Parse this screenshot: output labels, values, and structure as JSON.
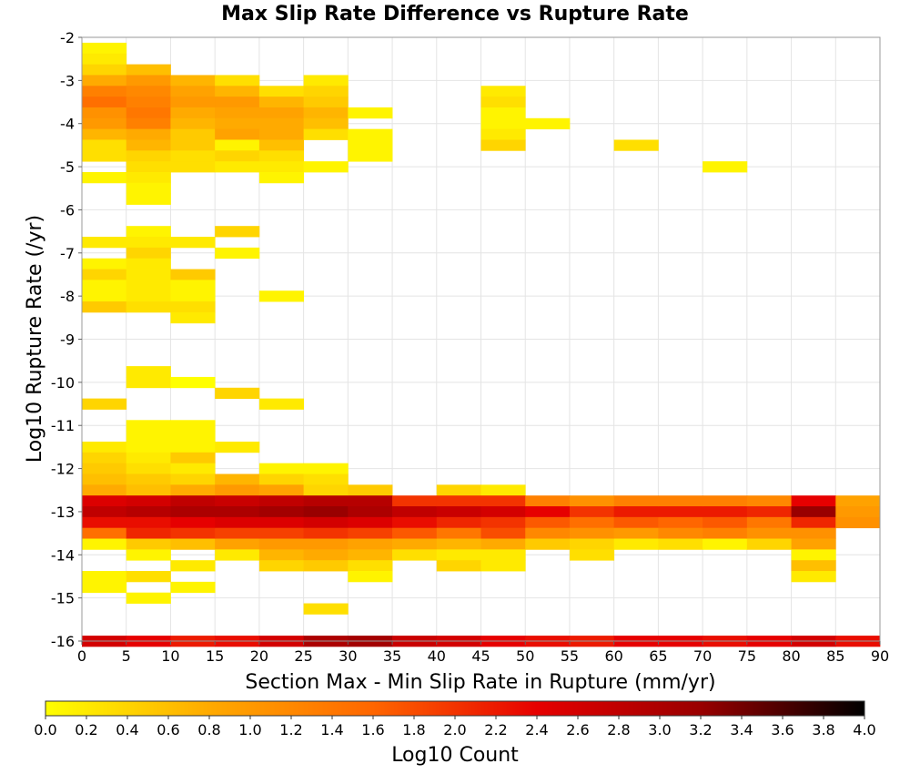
{
  "chart_data": {
    "type": "heatmap",
    "title": "Max Slip Rate Difference vs Rupture Rate",
    "xlabel": "Section Max - Min Slip Rate in Rupture (mm/yr)",
    "ylabel": "Log10 Rupture Rate (/yr)",
    "xlim": [
      0,
      90
    ],
    "ylim": [
      -16,
      -2
    ],
    "x_ticks": [
      "0",
      "5",
      "10",
      "15",
      "20",
      "25",
      "30",
      "35",
      "40",
      "45",
      "50",
      "55",
      "60",
      "65",
      "70",
      "75",
      "80",
      "85",
      "90"
    ],
    "y_ticks": [
      "-2",
      "-3",
      "-4",
      "-5",
      "-6",
      "-7",
      "-8",
      "-9",
      "-10",
      "-11",
      "-12",
      "-13",
      "-14",
      "-15",
      "-16"
    ],
    "x_bin_width": 5,
    "y_bin_height": 0.25,
    "grid": true,
    "colorbar": {
      "label": "Log10 Count",
      "min": 0.0,
      "max": 4.0,
      "ticks": [
        "0.0",
        "0.2",
        "0.4",
        "0.6",
        "0.8",
        "1.0",
        "1.2",
        "1.4",
        "1.6",
        "1.8",
        "2.0",
        "2.2",
        "2.4",
        "2.6",
        "2.8",
        "3.0",
        "3.2",
        "3.4",
        "3.6",
        "3.8",
        "4.0"
      ],
      "colors": [
        "#ffff00",
        "#ffaa00",
        "#ff6600",
        "#e60000",
        "#990000",
        "#000000"
      ]
    },
    "cells": [
      [
        0,
        -2.25,
        0.1
      ],
      [
        0,
        -2.5,
        0.2
      ],
      [
        0,
        -2.75,
        0.4
      ],
      [
        0,
        -3.0,
        0.8
      ],
      [
        0,
        -3.25,
        1.3
      ],
      [
        0,
        -3.5,
        1.5
      ],
      [
        0,
        -3.75,
        1.1
      ],
      [
        0,
        -4.0,
        1.0
      ],
      [
        0,
        -4.25,
        0.7
      ],
      [
        0,
        -4.5,
        0.3
      ],
      [
        0,
        -4.75,
        0.3
      ],
      [
        0,
        -5.25,
        0.1
      ],
      [
        0,
        -6.75,
        0.2
      ],
      [
        0,
        -7.25,
        0.1
      ],
      [
        0,
        -7.5,
        0.4
      ],
      [
        0,
        -7.75,
        0.1
      ],
      [
        0,
        -8.0,
        0.1
      ],
      [
        0,
        -8.25,
        0.5
      ],
      [
        0,
        -10.5,
        0.4
      ],
      [
        0,
        -11.5,
        0.2
      ],
      [
        0,
        -11.75,
        0.4
      ],
      [
        0,
        -12.0,
        0.5
      ],
      [
        0,
        -12.25,
        0.6
      ],
      [
        0,
        -12.5,
        0.8
      ],
      [
        0,
        -12.75,
        2.5
      ],
      [
        0,
        -13.0,
        2.8
      ],
      [
        0,
        -13.25,
        2.3
      ],
      [
        0,
        -13.5,
        1.5
      ],
      [
        0,
        -13.75,
        0.1
      ],
      [
        0,
        -14.5,
        0.1
      ],
      [
        0,
        -14.75,
        0.1
      ],
      [
        5,
        -2.75,
        0.6
      ],
      [
        5,
        -3.0,
        1.0
      ],
      [
        5,
        -3.25,
        1.2
      ],
      [
        5,
        -3.5,
        1.3
      ],
      [
        5,
        -3.75,
        1.4
      ],
      [
        5,
        -4.0,
        1.3
      ],
      [
        5,
        -4.25,
        0.8
      ],
      [
        5,
        -4.5,
        0.7
      ],
      [
        5,
        -4.75,
        0.4
      ],
      [
        5,
        -5.0,
        0.3
      ],
      [
        5,
        -5.25,
        0.2
      ],
      [
        5,
        -5.5,
        0.1
      ],
      [
        5,
        -5.75,
        0.1
      ],
      [
        5,
        -6.5,
        0.1
      ],
      [
        5,
        -6.75,
        0.2
      ],
      [
        5,
        -7.0,
        0.4
      ],
      [
        5,
        -7.25,
        0.2
      ],
      [
        5,
        -7.5,
        0.2
      ],
      [
        5,
        -7.75,
        0.2
      ],
      [
        5,
        -8.0,
        0.2
      ],
      [
        5,
        -8.25,
        0.3
      ],
      [
        5,
        -9.75,
        0.2
      ],
      [
        5,
        -10.0,
        0.2
      ],
      [
        5,
        -11.0,
        0.1
      ],
      [
        5,
        -11.25,
        0.1
      ],
      [
        5,
        -11.5,
        0.1
      ],
      [
        5,
        -11.75,
        0.2
      ],
      [
        5,
        -12.0,
        0.3
      ],
      [
        5,
        -12.25,
        0.5
      ],
      [
        5,
        -12.5,
        0.6
      ],
      [
        5,
        -12.75,
        2.6
      ],
      [
        5,
        -13.0,
        2.9
      ],
      [
        5,
        -13.25,
        2.3
      ],
      [
        5,
        -13.5,
        2.1
      ],
      [
        5,
        -13.75,
        0.5
      ],
      [
        5,
        -14.0,
        0.1
      ],
      [
        5,
        -14.5,
        0.3
      ],
      [
        5,
        -15.0,
        0.1
      ],
      [
        10,
        -3.0,
        0.7
      ],
      [
        10,
        -3.25,
        0.9
      ],
      [
        10,
        -3.5,
        1.0
      ],
      [
        10,
        -3.75,
        0.8
      ],
      [
        10,
        -4.0,
        0.7
      ],
      [
        10,
        -4.25,
        0.5
      ],
      [
        10,
        -4.5,
        0.5
      ],
      [
        10,
        -4.75,
        0.3
      ],
      [
        10,
        -5.0,
        0.3
      ],
      [
        10,
        -6.75,
        0.2
      ],
      [
        10,
        -7.5,
        0.5
      ],
      [
        10,
        -7.75,
        0.1
      ],
      [
        10,
        -8.0,
        0.1
      ],
      [
        10,
        -8.25,
        0.3
      ],
      [
        10,
        -8.5,
        0.2
      ],
      [
        10,
        -10.0,
        0.0
      ],
      [
        10,
        -11.0,
        0.1
      ],
      [
        10,
        -11.25,
        0.1
      ],
      [
        10,
        -11.5,
        0.1
      ],
      [
        10,
        -11.75,
        0.5
      ],
      [
        10,
        -12.0,
        0.2
      ],
      [
        10,
        -12.25,
        0.4
      ],
      [
        10,
        -12.5,
        0.8
      ],
      [
        10,
        -12.75,
        2.8
      ],
      [
        10,
        -13.0,
        3.0
      ],
      [
        10,
        -13.25,
        2.4
      ],
      [
        10,
        -13.5,
        2.0
      ],
      [
        10,
        -13.75,
        0.6
      ],
      [
        10,
        -14.25,
        0.2
      ],
      [
        10,
        -14.75,
        0.1
      ],
      [
        15,
        -3.0,
        0.3
      ],
      [
        15,
        -3.25,
        0.7
      ],
      [
        15,
        -3.5,
        1.0
      ],
      [
        15,
        -3.75,
        0.9
      ],
      [
        15,
        -4.0,
        0.8
      ],
      [
        15,
        -4.25,
        0.9
      ],
      [
        15,
        -4.5,
        0.1
      ],
      [
        15,
        -4.75,
        0.4
      ],
      [
        15,
        -5.0,
        0.2
      ],
      [
        15,
        -6.5,
        0.4
      ],
      [
        15,
        -7.0,
        0.1
      ],
      [
        15,
        -10.25,
        0.4
      ],
      [
        15,
        -11.5,
        0.2
      ],
      [
        15,
        -12.25,
        0.7
      ],
      [
        15,
        -12.5,
        1.0
      ],
      [
        15,
        -12.75,
        2.7
      ],
      [
        15,
        -13.0,
        3.0
      ],
      [
        15,
        -13.25,
        2.5
      ],
      [
        15,
        -13.5,
        1.9
      ],
      [
        15,
        -13.75,
        0.9
      ],
      [
        15,
        -14.0,
        0.2
      ],
      [
        20,
        -3.25,
        0.3
      ],
      [
        20,
        -3.5,
        0.7
      ],
      [
        20,
        -3.75,
        0.9
      ],
      [
        20,
        -4.0,
        0.8
      ],
      [
        20,
        -4.25,
        0.8
      ],
      [
        20,
        -4.5,
        0.6
      ],
      [
        20,
        -4.75,
        0.3
      ],
      [
        20,
        -5.0,
        0.2
      ],
      [
        20,
        -5.25,
        0.1
      ],
      [
        20,
        -8.0,
        0.1
      ],
      [
        20,
        -10.5,
        0.2
      ],
      [
        20,
        -12.0,
        0.1
      ],
      [
        20,
        -12.25,
        0.4
      ],
      [
        20,
        -12.5,
        0.9
      ],
      [
        20,
        -12.75,
        2.8
      ],
      [
        20,
        -13.0,
        3.1
      ],
      [
        20,
        -13.25,
        2.5
      ],
      [
        20,
        -13.5,
        1.9
      ],
      [
        20,
        -13.75,
        1.0
      ],
      [
        20,
        -14.0,
        0.7
      ],
      [
        20,
        -14.25,
        0.4
      ],
      [
        25,
        -3.0,
        0.2
      ],
      [
        25,
        -3.25,
        0.4
      ],
      [
        25,
        -3.5,
        0.5
      ],
      [
        25,
        -3.75,
        0.7
      ],
      [
        25,
        -4.0,
        0.6
      ],
      [
        25,
        -4.25,
        0.3
      ],
      [
        25,
        -5.0,
        0.1
      ],
      [
        25,
        -12.0,
        0.1
      ],
      [
        25,
        -12.25,
        0.3
      ],
      [
        25,
        -12.5,
        0.4
      ],
      [
        25,
        -12.75,
        2.9
      ],
      [
        25,
        -13.0,
        3.2
      ],
      [
        25,
        -13.25,
        2.6
      ],
      [
        25,
        -13.5,
        2.0
      ],
      [
        25,
        -13.75,
        1.0
      ],
      [
        25,
        -14.0,
        0.8
      ],
      [
        25,
        -14.25,
        0.5
      ],
      [
        25,
        -15.25,
        0.3
      ],
      [
        30,
        -3.75,
        0.1
      ],
      [
        30,
        -4.25,
        0.1
      ],
      [
        30,
        -4.5,
        0.1
      ],
      [
        30,
        -4.75,
        0.1
      ],
      [
        30,
        -12.5,
        0.5
      ],
      [
        30,
        -12.75,
        2.9
      ],
      [
        30,
        -13.0,
        3.0
      ],
      [
        30,
        -13.25,
        2.5
      ],
      [
        30,
        -13.5,
        1.9
      ],
      [
        30,
        -13.75,
        0.9
      ],
      [
        30,
        -14.0,
        0.7
      ],
      [
        30,
        -14.25,
        0.3
      ],
      [
        30,
        -14.5,
        0.1
      ],
      [
        35,
        -12.75,
        2.0
      ],
      [
        35,
        -13.0,
        2.8
      ],
      [
        35,
        -13.25,
        2.3
      ],
      [
        35,
        -13.5,
        1.7
      ],
      [
        35,
        -13.75,
        0.8
      ],
      [
        35,
        -14.0,
        0.3
      ],
      [
        40,
        -12.5,
        0.4
      ],
      [
        40,
        -12.75,
        2.0
      ],
      [
        40,
        -13.0,
        2.7
      ],
      [
        40,
        -13.25,
        2.1
      ],
      [
        40,
        -13.5,
        1.4
      ],
      [
        40,
        -13.75,
        0.7
      ],
      [
        40,
        -14.0,
        0.2
      ],
      [
        40,
        -14.25,
        0.4
      ],
      [
        45,
        -3.25,
        0.2
      ],
      [
        45,
        -3.5,
        0.3
      ],
      [
        45,
        -3.75,
        0.1
      ],
      [
        45,
        -4.0,
        0.1
      ],
      [
        45,
        -4.25,
        0.2
      ],
      [
        45,
        -4.5,
        0.4
      ],
      [
        45,
        -12.5,
        0.2
      ],
      [
        45,
        -12.75,
        2.0
      ],
      [
        45,
        -13.0,
        2.6
      ],
      [
        45,
        -13.25,
        2.0
      ],
      [
        45,
        -13.5,
        1.8
      ],
      [
        45,
        -13.75,
        0.8
      ],
      [
        45,
        -14.0,
        0.2
      ],
      [
        45,
        -14.25,
        0.2
      ],
      [
        50,
        -4.0,
        0.1
      ],
      [
        50,
        -12.75,
        1.3
      ],
      [
        50,
        -13.0,
        2.4
      ],
      [
        50,
        -13.25,
        1.7
      ],
      [
        50,
        -13.5,
        1.2
      ],
      [
        50,
        -13.75,
        0.5
      ],
      [
        55,
        -12.75,
        1.1
      ],
      [
        55,
        -13.0,
        2.0
      ],
      [
        55,
        -13.25,
        1.5
      ],
      [
        55,
        -13.5,
        1.1
      ],
      [
        55,
        -13.75,
        0.4
      ],
      [
        55,
        -14.0,
        0.3
      ],
      [
        60,
        -4.5,
        0.3
      ],
      [
        60,
        -12.75,
        1.3
      ],
      [
        60,
        -13.0,
        2.2
      ],
      [
        60,
        -13.25,
        1.7
      ],
      [
        60,
        -13.5,
        1.0
      ],
      [
        60,
        -13.75,
        0.2
      ],
      [
        65,
        -12.75,
        1.3
      ],
      [
        65,
        -13.0,
        2.2
      ],
      [
        65,
        -13.25,
        1.6
      ],
      [
        65,
        -13.5,
        1.2
      ],
      [
        65,
        -13.75,
        0.3
      ],
      [
        70,
        -5.0,
        0.1
      ],
      [
        70,
        -12.75,
        1.3
      ],
      [
        70,
        -13.0,
        2.2
      ],
      [
        70,
        -13.25,
        1.7
      ],
      [
        70,
        -13.5,
        1.3
      ],
      [
        70,
        -13.75,
        0.1
      ],
      [
        75,
        -12.75,
        1.2
      ],
      [
        75,
        -13.0,
        2.1
      ],
      [
        75,
        -13.25,
        1.4
      ],
      [
        75,
        -13.5,
        1.1
      ],
      [
        75,
        -13.75,
        0.4
      ],
      [
        80,
        -12.75,
        2.4
      ],
      [
        80,
        -13.0,
        3.2
      ],
      [
        80,
        -13.25,
        2.1
      ],
      [
        80,
        -13.5,
        1.1
      ],
      [
        80,
        -13.75,
        0.9
      ],
      [
        80,
        -14.0,
        0.1
      ],
      [
        80,
        -14.25,
        0.6
      ],
      [
        80,
        -14.5,
        0.2
      ],
      [
        85,
        -12.75,
        0.9
      ],
      [
        85,
        -13.0,
        1.0
      ],
      [
        85,
        -13.25,
        1.1
      ],
      [
        0,
        -16.0,
        2.6
      ],
      [
        5,
        -16.0,
        2.4
      ],
      [
        10,
        -16.0,
        2.2
      ],
      [
        15,
        -16.0,
        2.3
      ],
      [
        20,
        -16.0,
        2.6
      ],
      [
        25,
        -16.0,
        3.0
      ],
      [
        30,
        -16.0,
        3.1
      ],
      [
        35,
        -16.0,
        2.7
      ],
      [
        40,
        -16.0,
        2.6
      ],
      [
        45,
        -16.0,
        2.4
      ],
      [
        50,
        -16.0,
        2.3
      ],
      [
        55,
        -16.0,
        2.2
      ],
      [
        60,
        -16.0,
        2.4
      ],
      [
        65,
        -16.0,
        2.4
      ],
      [
        70,
        -16.0,
        2.3
      ],
      [
        75,
        -16.0,
        2.4
      ],
      [
        80,
        -16.0,
        2.6
      ],
      [
        85,
        -16.0,
        2.3
      ]
    ]
  }
}
